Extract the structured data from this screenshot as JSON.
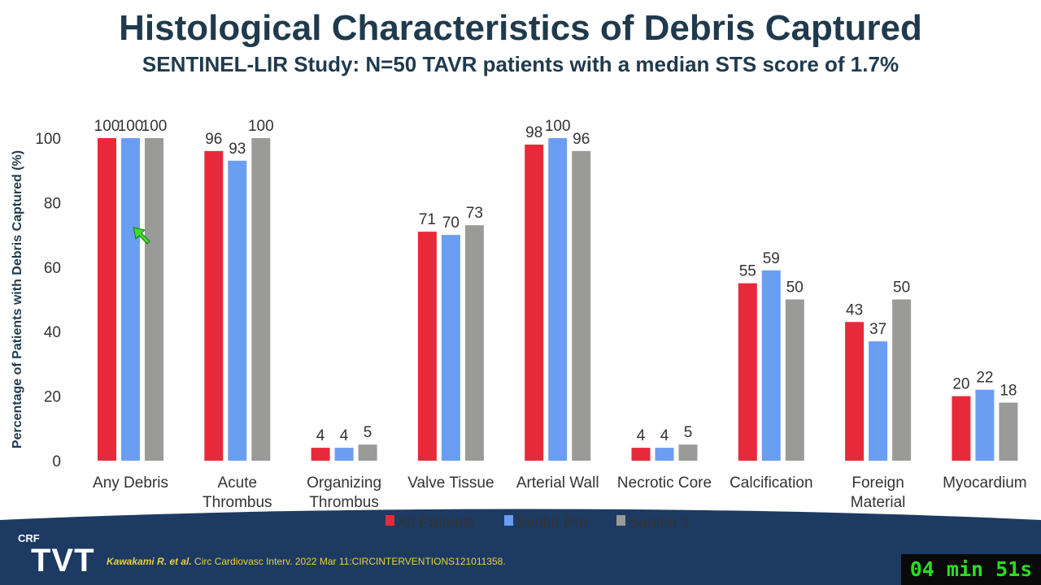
{
  "header": {
    "title": "Histological Characteristics of Debris Captured",
    "subtitle": "SENTINEL-LIR Study: N=50 TAVR patients with a median STS score of 1.7%"
  },
  "chart_data": {
    "type": "bar",
    "title": "",
    "ylabel": "Percentage of Patients with Debris Captured (%)",
    "xlabel": "",
    "ylim": [
      0,
      100
    ],
    "yticks": [
      "0",
      "20",
      "40",
      "60",
      "80",
      "100"
    ],
    "grid": false,
    "legend_position": "bottom",
    "categories": [
      [
        "Any Debris"
      ],
      [
        "Acute",
        "Thrombus"
      ],
      [
        "Organizing",
        "Thrombus"
      ],
      [
        "Valve Tissue"
      ],
      [
        "Arterial Wall"
      ],
      [
        "Necrotic Core"
      ],
      [
        "Calcification"
      ],
      [
        "Foreign",
        "Material"
      ],
      [
        "Myocardium"
      ]
    ],
    "series": [
      {
        "name": "All Patients",
        "color": "#e8293a",
        "values": [
          100,
          96,
          4,
          71,
          98,
          4,
          55,
          43,
          20
        ]
      },
      {
        "name": "Evolut Pro",
        "color": "#6a9ef2",
        "values": [
          100,
          93,
          4,
          70,
          100,
          4,
          59,
          37,
          22
        ]
      },
      {
        "name": "Sapien 3",
        "color": "#9a9a98",
        "values": [
          100,
          100,
          5,
          73,
          96,
          5,
          50,
          50,
          18
        ]
      }
    ]
  },
  "footer": {
    "logo_top": "CRF",
    "logo_main": "TVT",
    "citation_author": "Kawakami R. et al.",
    "citation_rest": " Circ Cardiovasc Interv. 2022 Mar 11:CIRCINTERVENTIONS121011358.",
    "timer": "04 min 51s",
    "band_color": "#1d3a63"
  }
}
